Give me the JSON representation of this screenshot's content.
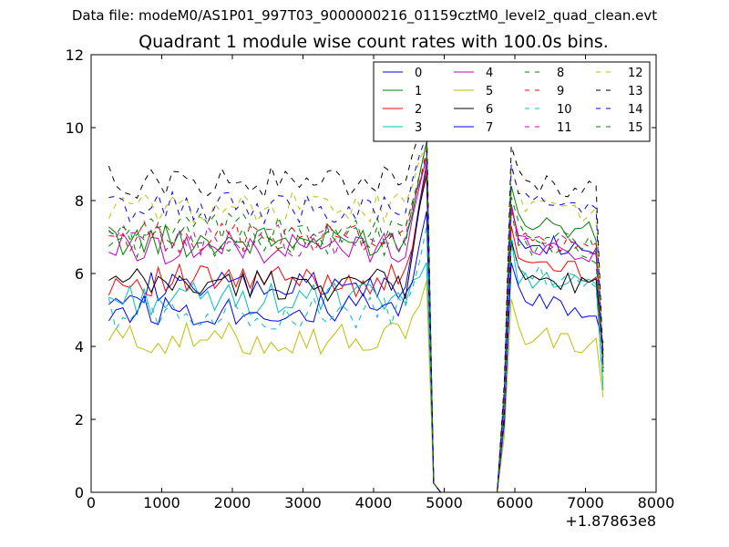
{
  "suptitle": "Data file: modeM0/AS1P01_997T03_9000000216_01159cztM0_level2_quad_clean.evt",
  "chart_data": {
    "type": "line",
    "title": "Quadrant 1 module wise count rates with 100.0s bins.",
    "xlabel": "",
    "ylabel": "",
    "x_offset_label": "+1.87863e8",
    "xlim": [
      0,
      8000
    ],
    "ylim": [
      0,
      12
    ],
    "xticks": [
      "0",
      "1000",
      "2000",
      "3000",
      "4000",
      "5000",
      "6000",
      "7000",
      "8000"
    ],
    "yticks": [
      "0",
      "2",
      "4",
      "6",
      "8",
      "10",
      "12"
    ],
    "grid": false,
    "legend_position": "top-right",
    "x": [
      250,
      350,
      450,
      550,
      650,
      750,
      850,
      950,
      1050,
      1150,
      1250,
      1350,
      1450,
      1550,
      1650,
      1750,
      1850,
      1950,
      2050,
      2150,
      2250,
      2350,
      2450,
      2550,
      2650,
      2750,
      2850,
      2950,
      3050,
      3150,
      3250,
      3350,
      3450,
      3550,
      3650,
      3750,
      3850,
      3950,
      4050,
      4150,
      4250,
      4350,
      4450,
      4550,
      4650,
      4750,
      4850,
      4950,
      5050,
      5150,
      5250,
      5350,
      5450,
      5550,
      5650,
      5750,
      5850,
      5950,
      6050,
      6150,
      6250,
      6350,
      6450,
      6550,
      6650,
      6750,
      6850,
      6950,
      7050,
      7150,
      7250
    ],
    "series": [
      {
        "name": "0",
        "color": "#0000ff",
        "dash": "solid",
        "base": 5.6,
        "peak": 9.0,
        "post": 7.0,
        "tail": 3.7
      },
      {
        "name": "1",
        "color": "#008000",
        "dash": "solid",
        "base": 6.9,
        "peak": 9.6,
        "post": 7.5,
        "tail": 3.3
      },
      {
        "name": "2",
        "color": "#ff0000",
        "dash": "solid",
        "base": 5.8,
        "peak": 8.9,
        "post": 6.4,
        "tail": 3.5
      },
      {
        "name": "3",
        "color": "#00bfbf",
        "dash": "solid",
        "base": 5.3,
        "peak": 6.3,
        "post": 6.0,
        "tail": 2.8
      },
      {
        "name": "4",
        "color": "#bf00bf",
        "dash": "solid",
        "base": 6.7,
        "peak": 9.2,
        "post": 6.9,
        "tail": 3.4
      },
      {
        "name": "5",
        "color": "#bfbf00",
        "dash": "solid",
        "base": 4.2,
        "peak": 5.8,
        "post": 4.4,
        "tail": 2.6
      },
      {
        "name": "6",
        "color": "#000000",
        "dash": "solid",
        "base": 5.7,
        "peak": 8.7,
        "post": 6.0,
        "tail": 3.9
      },
      {
        "name": "7",
        "color": "#0000ff",
        "dash": "solid",
        "base": 5.0,
        "peak": 7.7,
        "post": 5.4,
        "tail": 4.1
      },
      {
        "name": "8",
        "color": "#008000",
        "dash": "dashed",
        "base": 6.9,
        "peak": 9.3,
        "post": 6.8,
        "tail": 3.7
      },
      {
        "name": "9",
        "color": "#ff0000",
        "dash": "dashed",
        "base": 7.0,
        "peak": 9.4,
        "post": 7.0,
        "tail": 3.6
      },
      {
        "name": "10",
        "color": "#00bfbf",
        "dash": "dashed",
        "base": 4.9,
        "peak": 7.3,
        "post": 6.1,
        "tail": 2.9
      },
      {
        "name": "11",
        "color": "#bf00bf",
        "dash": "dashed",
        "base": 6.9,
        "peak": 9.1,
        "post": 7.0,
        "tail": 3.8
      },
      {
        "name": "12",
        "color": "#bfbf00",
        "dash": "dashed",
        "base": 7.8,
        "peak": 9.5,
        "post": 8.0,
        "tail": 3.1
      },
      {
        "name": "13",
        "color": "#000000",
        "dash": "dashed",
        "base": 8.5,
        "peak": 10.3,
        "post": 8.6,
        "tail": 3.6
      },
      {
        "name": "14",
        "color": "#0000ff",
        "dash": "dashed",
        "base": 7.8,
        "peak": 9.8,
        "post": 8.1,
        "tail": 3.4
      },
      {
        "name": "15",
        "color": "#008000",
        "dash": "dashed",
        "base": 7.2,
        "peak": 9.6,
        "post": 7.2,
        "tail": 3.3
      }
    ]
  }
}
